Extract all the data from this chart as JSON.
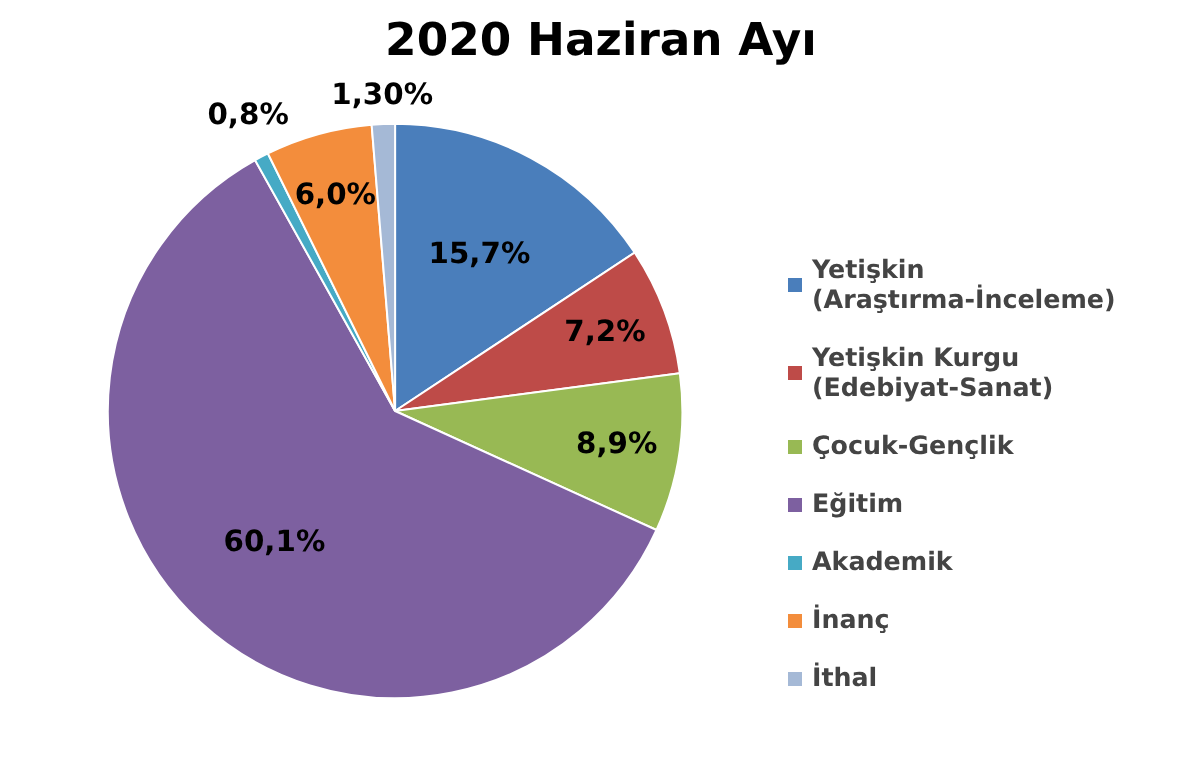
{
  "chart_data": {
    "type": "pie",
    "title": "2020 Haziran Ayı",
    "categories": [
      "Yetişkin\n(Araştırma-İnceleme)",
      "Yetişkin Kurgu\n(Edebiyat-Sanat)",
      "Çocuk-Gençlik",
      "Eğitim",
      "Akademik",
      "İnanç",
      "İthal"
    ],
    "values": [
      15.7,
      7.2,
      8.9,
      60.1,
      0.8,
      6.0,
      1.3
    ],
    "value_labels": [
      "15,7%",
      "7,2%",
      "8,9%",
      "60,1%",
      "0,8%",
      "6,0%",
      "1,30%"
    ],
    "colors": [
      "#4a7ebb",
      "#be4b48",
      "#98b954",
      "#7d60a0",
      "#46aac5",
      "#f38d3c",
      "#a5b9d6"
    ],
    "legend": "right"
  }
}
